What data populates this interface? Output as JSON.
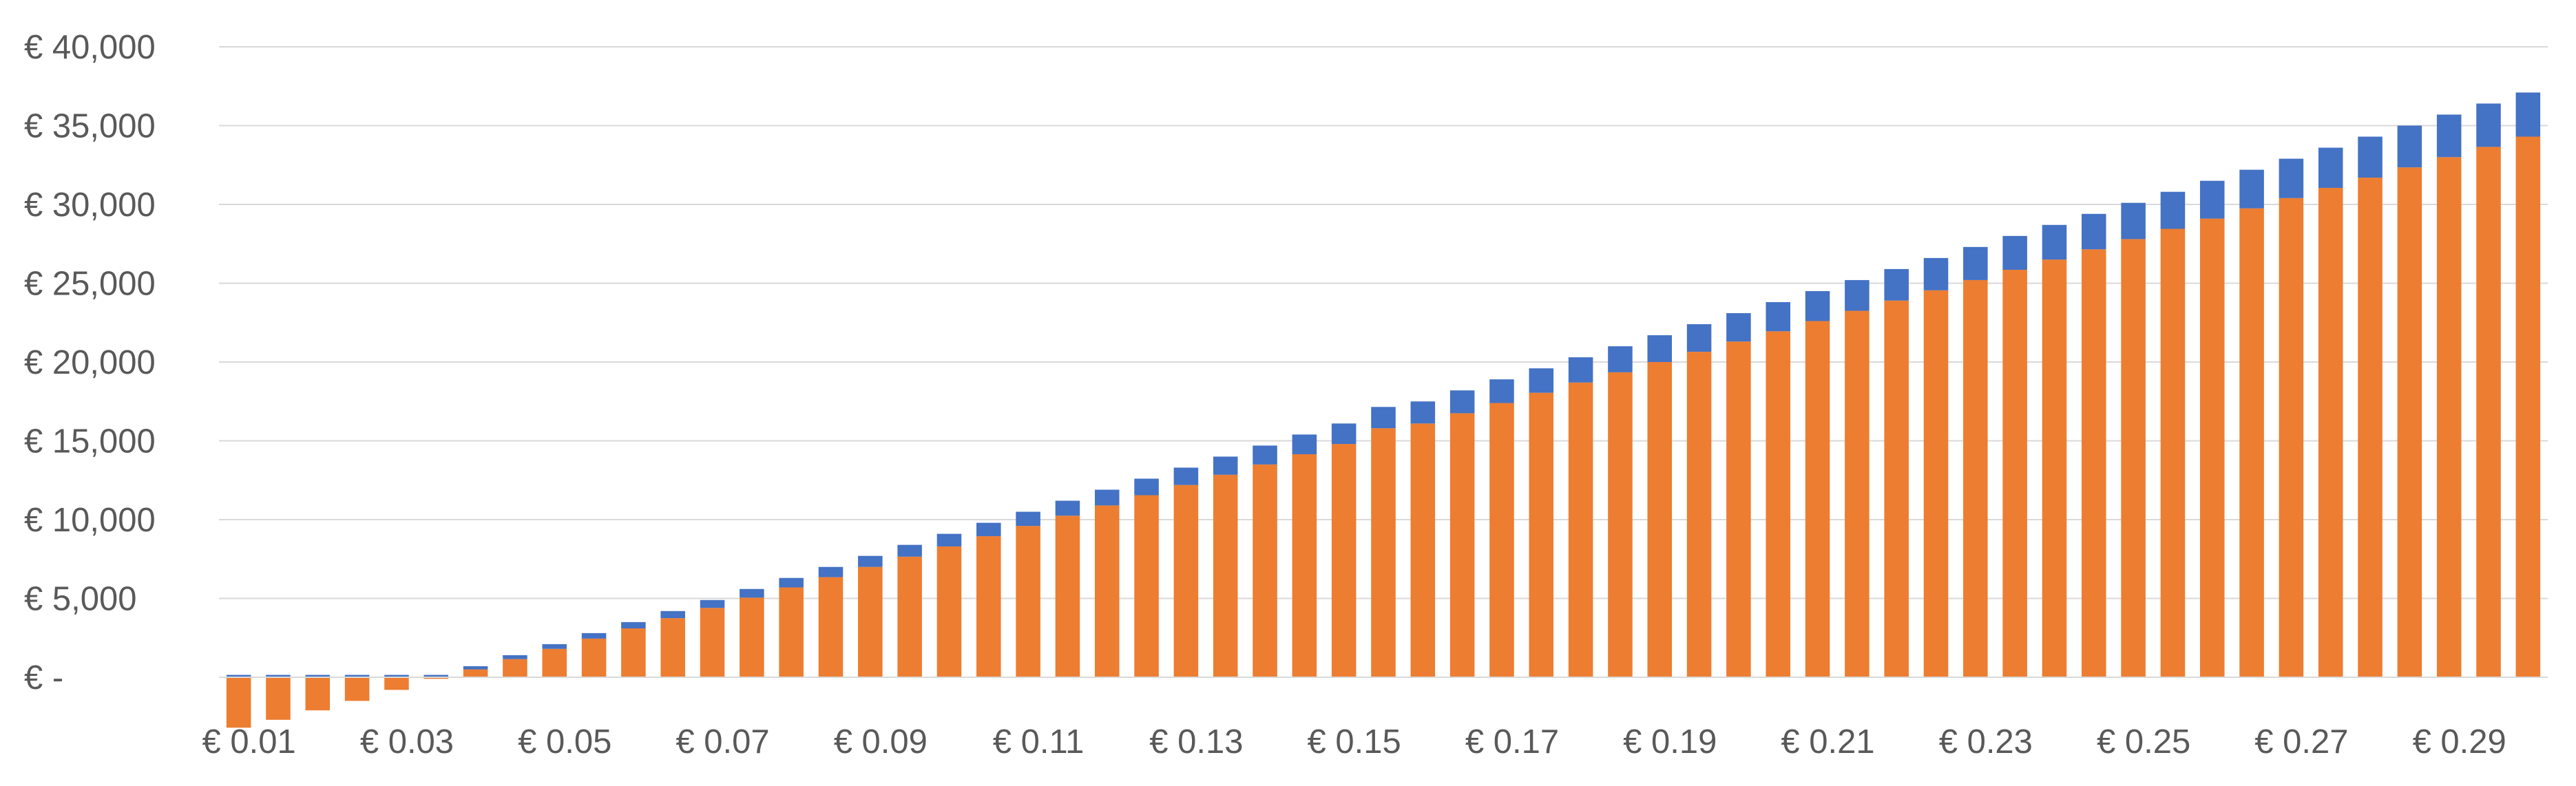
{
  "chart_data": {
    "type": "bar",
    "stacked": true,
    "title": "",
    "xlabel": "",
    "ylabel": "",
    "ylim": [
      -5000,
      40000
    ],
    "y_ticks": [
      {
        "value": 0,
        "label": "€ -"
      },
      {
        "value": 5000,
        "label": "€ 5,000"
      },
      {
        "value": 10000,
        "label": "€ 10,000"
      },
      {
        "value": 15000,
        "label": "€ 15,000"
      },
      {
        "value": 20000,
        "label": "€ 20,000"
      },
      {
        "value": 25000,
        "label": "€ 25,000"
      },
      {
        "value": 30000,
        "label": "€ 30,000"
      },
      {
        "value": 35000,
        "label": "€ 35,000"
      },
      {
        "value": 40000,
        "label": "€ 40,000"
      }
    ],
    "x_tick_labels": [
      "€ 0.01",
      "€ 0.03",
      "€ 0.05",
      "€ 0.07",
      "€ 0.09",
      "€ 0.11",
      "€ 0.13",
      "€ 0.15",
      "€ 0.17",
      "€ 0.19",
      "€ 0.21",
      "€ 0.23",
      "€ 0.25",
      "€ 0.27",
      "€ 0.29"
    ],
    "categories": [
      "0.010",
      "0.015",
      "0.020",
      "0.025",
      "0.030",
      "0.035",
      "0.040",
      "0.045",
      "0.050",
      "0.055",
      "0.060",
      "0.065",
      "0.070",
      "0.075",
      "0.080",
      "0.085",
      "0.090",
      "0.095",
      "0.100",
      "0.105",
      "0.110",
      "0.115",
      "0.120",
      "0.125",
      "0.130",
      "0.135",
      "0.140",
      "0.145",
      "0.150",
      "0.155",
      "0.160",
      "0.165",
      "0.170",
      "0.175",
      "0.180",
      "0.185",
      "0.190",
      "0.195",
      "0.200",
      "0.205",
      "0.210",
      "0.215",
      "0.220",
      "0.225",
      "0.230",
      "0.235",
      "0.240",
      "0.245",
      "0.250",
      "0.255",
      "0.260",
      "0.265",
      "0.270",
      "0.275",
      "0.280",
      "0.285",
      "0.290",
      "0.295",
      "0.300"
    ],
    "series": [
      {
        "color": "#ed7d31",
        "values": [
          -3200,
          -2700,
          -2100,
          -1500,
          -800,
          -100,
          500,
          1150,
          1800,
          2450,
          3100,
          3750,
          4400,
          5050,
          5700,
          6350,
          7000,
          7650,
          8300,
          8950,
          9600,
          10250,
          10900,
          11550,
          12200,
          12850,
          13500,
          14150,
          14800,
          15800,
          16100,
          16750,
          17400,
          18050,
          18700,
          19350,
          20000,
          20650,
          21300,
          21950,
          22600,
          23250,
          23900,
          24550,
          25200,
          25850,
          26500,
          27150,
          27800,
          28450,
          29100,
          29750,
          30400,
          31050,
          31700,
          32350,
          33000,
          33650,
          34300
        ]
      },
      {
        "color": "#4472c4",
        "values": [
          150,
          150,
          150,
          150,
          150,
          150,
          200,
          250,
          300,
          350,
          400,
          450,
          500,
          550,
          600,
          650,
          700,
          750,
          800,
          850,
          900,
          950,
          1000,
          1050,
          1100,
          1150,
          1200,
          1250,
          1300,
          1350,
          1400,
          1450,
          1500,
          1550,
          1600,
          1650,
          1700,
          1750,
          1800,
          1850,
          1900,
          1950,
          2000,
          2050,
          2100,
          2150,
          2200,
          2250,
          2300,
          2350,
          2400,
          2450,
          2500,
          2550,
          2600,
          2650,
          2700,
          2750,
          2800
        ]
      }
    ],
    "grid": true,
    "legend": "none"
  }
}
